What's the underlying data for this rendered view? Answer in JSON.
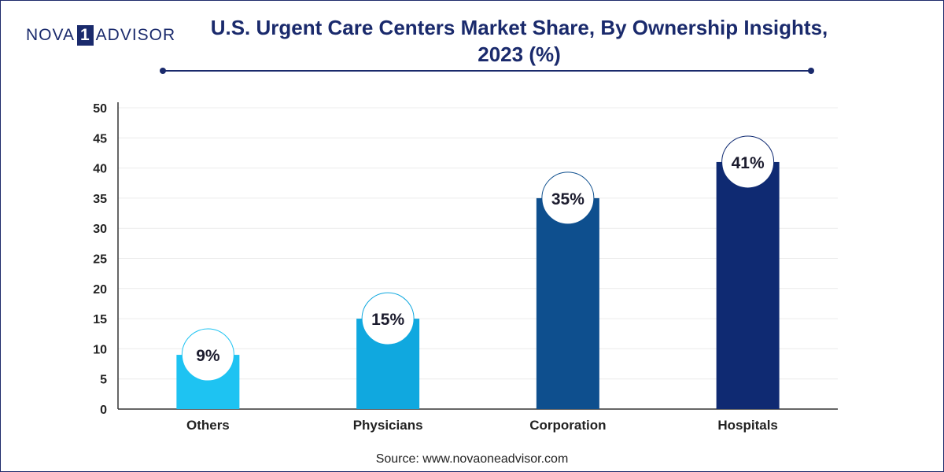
{
  "header": {
    "logo_part1": "NOVA",
    "logo_part2": "1",
    "logo_part3": "ADVISOR",
    "title_line1": "U.S. Urgent Care Centers Market Share, By Ownership Insights,",
    "title_line2": "2023 (%)"
  },
  "footer": {
    "source": "Source: www.novaoneadvisor.com"
  },
  "colors": {
    "brand": "#1a2a6c",
    "others": "#1ec3f2",
    "physicians": "#10a8df",
    "corporation": "#0e4f8e",
    "hospitals": "#0f2a72"
  },
  "chart_data": {
    "type": "bar",
    "title": "U.S. Urgent Care Centers Market Share, By Ownership Insights, 2023 (%)",
    "categories": [
      "Others",
      "Physicians",
      "Corporation",
      "Hospitals"
    ],
    "values": [
      9,
      15,
      35,
      41
    ],
    "data_labels": [
      "9%",
      "15%",
      "35%",
      "41%"
    ],
    "bar_colors": [
      "#1ec3f2",
      "#10a8df",
      "#0e4f8e",
      "#0f2a72"
    ],
    "ylim": [
      0,
      50
    ],
    "yticks": [
      0,
      5,
      10,
      15,
      20,
      25,
      30,
      35,
      40,
      45,
      50
    ],
    "xlabel": "",
    "ylabel": "",
    "grid": true,
    "legend": "none"
  }
}
